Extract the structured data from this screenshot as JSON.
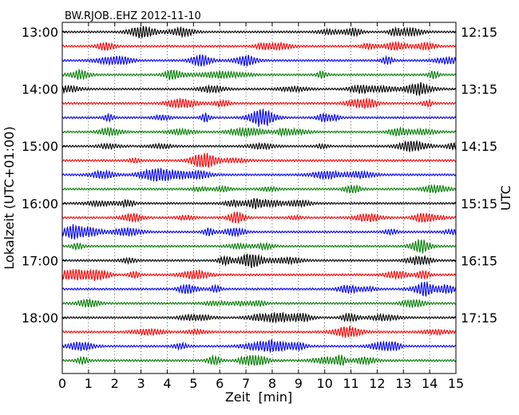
{
  "chart_data": {
    "type": "line",
    "title": "BW.RJOB..EHZ 2012-11-10",
    "xlabel": "Zeit  [min]",
    "ylabel_left": "Lokalzeit (UTC+01:00)",
    "ylabel_right": "UTC",
    "xlim": [
      0,
      15
    ],
    "x_ticks": [
      0,
      1,
      2,
      3,
      4,
      5,
      6,
      7,
      8,
      9,
      10,
      11,
      12,
      13,
      14,
      15
    ],
    "x_tick_labels": [
      "0",
      "1",
      "2",
      "3",
      "4",
      "5",
      "6",
      "7",
      "8",
      "9",
      "10",
      "11",
      "12",
      "13",
      "14",
      "15"
    ],
    "grid_x": true,
    "num_traces": 24,
    "trace_minutes": 15,
    "trace_colors": [
      "#000000",
      "#ff0000",
      "#0000ff",
      "#007f00"
    ],
    "left_tick_labels": [
      "13:00",
      "14:00",
      "15:00",
      "16:00",
      "17:00",
      "18:00"
    ],
    "right_tick_labels": [
      "12:15",
      "13:15",
      "14:15",
      "15:15",
      "16:15",
      "17:15"
    ],
    "label_every_n_traces": 4
  }
}
